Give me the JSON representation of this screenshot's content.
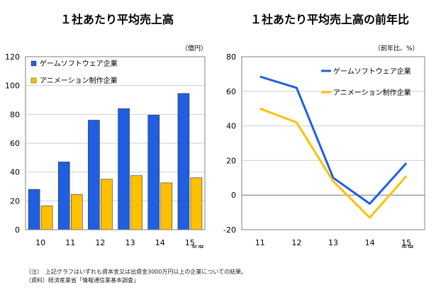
{
  "charts": {
    "left": {
      "title": "１社あたり平均売上高",
      "unit": "（億円）",
      "year_label": "年度"
    },
    "right": {
      "title": "１社あたり平均売上高の前年比",
      "unit": "（前年比、%）",
      "year_label": "年度"
    }
  },
  "chart_data": [
    {
      "type": "bar",
      "title": "１社あたり平均売上高",
      "ylabel": "（億円）",
      "xlabel": "年度",
      "categories": [
        "10",
        "11",
        "12",
        "13",
        "14",
        "15"
      ],
      "ylim": [
        0,
        120
      ],
      "yticks": [
        0,
        20,
        40,
        60,
        80,
        100,
        120
      ],
      "grid": true,
      "legend": "top-left",
      "series": [
        {
          "name": "ゲームソフトウェア企業",
          "color": "#1f5fe0",
          "values": [
            28,
            47,
            76,
            84,
            79.5,
            94.5
          ]
        },
        {
          "name": "アニメーション制作企業",
          "color": "#ffc000",
          "values": [
            16.5,
            24.5,
            35,
            37.5,
            32.5,
            36
          ]
        }
      ]
    },
    {
      "type": "line",
      "title": "１社あたり平均売上高の前年比",
      "ylabel": "（前年比、%）",
      "xlabel": "年度",
      "categories": [
        "11",
        "12",
        "13",
        "14",
        "15"
      ],
      "ylim": [
        -20,
        80
      ],
      "yticks": [
        -20,
        0,
        20,
        40,
        60,
        80
      ],
      "grid": true,
      "legend": "top-right",
      "series": [
        {
          "name": "ゲームソフトウェア企業",
          "color": "#1f5fe0",
          "values": [
            68.5,
            62,
            10,
            -5,
            18.5
          ]
        },
        {
          "name": "アニメーション制作企業",
          "color": "#ffc000",
          "values": [
            50,
            42,
            8,
            -13,
            11
          ]
        }
      ]
    }
  ],
  "notes": {
    "note1": "（注）　上記グラフはいずれも資本金又は出資金3000万円以上の企業についての結果。",
    "note2": "（資料）経済産業省「情報通信業基本調査」"
  }
}
